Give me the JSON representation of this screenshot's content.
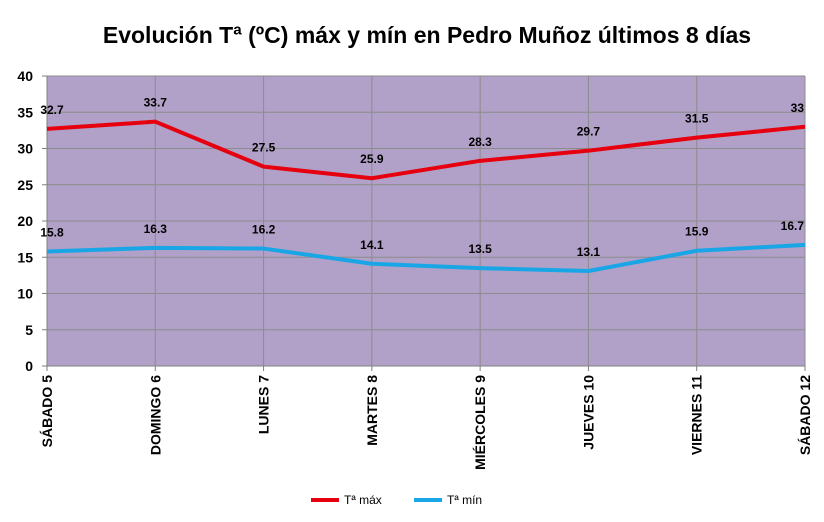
{
  "chart_data": {
    "type": "line",
    "title": "Evolución Tª (ºC) máx y mín en Pedro Muñoz últimos 8 días",
    "xlabel": "",
    "ylabel": "",
    "categories": [
      "SÁBADO 5",
      "DOMINGO 6",
      "LUNES 7",
      "MARTES 8",
      "MIÉRCOLES 9",
      "JUEVES 10",
      "VIERNES 11",
      "SÁBADO 12"
    ],
    "ylim": [
      0,
      40
    ],
    "yticks": [
      "0",
      "5",
      "10",
      "15",
      "20",
      "25",
      "30",
      "35",
      "40"
    ],
    "grid": true,
    "legend_position": "bottom",
    "plot_background": "#b1a0c7",
    "series": [
      {
        "name": "Tª máx",
        "color": "#e6000f",
        "values": [
          32.7,
          33.7,
          27.5,
          25.9,
          28.3,
          29.7,
          31.5,
          33
        ],
        "labels": [
          "32.7",
          "33.7",
          "27.5",
          "25.9",
          "28.3",
          "29.7",
          "31.5",
          "33"
        ]
      },
      {
        "name": "Tª mín",
        "color": "#19a6e6",
        "values": [
          15.8,
          16.3,
          16.2,
          14.1,
          13.5,
          13.1,
          15.9,
          16.7
        ],
        "labels": [
          "15.8",
          "16.3",
          "16.2",
          "14.1",
          "13.5",
          "13.1",
          "15.9",
          "16.7"
        ]
      }
    ]
  }
}
